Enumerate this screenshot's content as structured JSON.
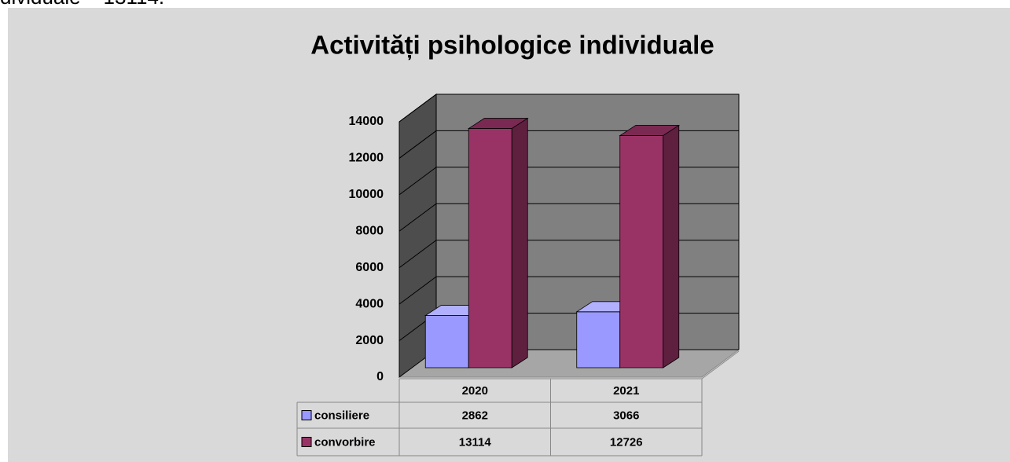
{
  "annotation": "dividuale – 13114.",
  "chart_data": {
    "type": "bar3d",
    "title": "Activități psihologice individuale",
    "categories": [
      "2020",
      "2021"
    ],
    "series": [
      {
        "name": "consiliere",
        "color": "#9999ff",
        "values": [
          2862,
          3066
        ]
      },
      {
        "name": "convorbire",
        "color": "#993366",
        "values": [
          13114,
          12726
        ]
      }
    ],
    "ylim": [
      0,
      14000
    ],
    "yticks": [
      0,
      2000,
      4000,
      6000,
      8000,
      10000,
      12000,
      14000
    ],
    "grid": true,
    "data_table": true
  }
}
